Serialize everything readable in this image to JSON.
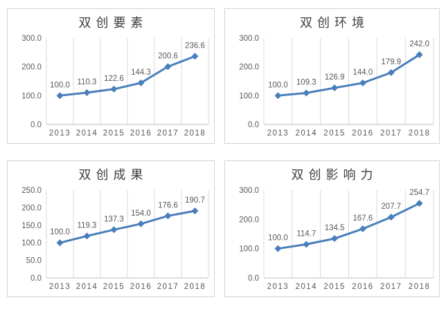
{
  "figure": {
    "kind": "2x2-line-chart-grid",
    "background": "#ffffff"
  },
  "colors": {
    "accent": "#4a7ebb",
    "gridline": "#d9d9d9",
    "axis_line": "#bfbfbf",
    "tick_text": "#595959",
    "data_label_text": "#595959",
    "title_text": "#404040",
    "panel_border": "#d2d2d2"
  },
  "chart_data": [
    {
      "type": "line",
      "title": "双创要素",
      "categories": [
        "2013",
        "2014",
        "2015",
        "2016",
        "2017",
        "2018"
      ],
      "values": [
        100.0,
        110.3,
        122.6,
        144.3,
        200.6,
        236.6
      ],
      "data_labels": [
        "100.0",
        "110.3",
        "122.6",
        "144.3",
        "200.6",
        "236.6"
      ],
      "yticks": [
        0.0,
        100.0,
        200.0,
        300.0
      ],
      "ytick_labels": [
        "0.0",
        "100.0",
        "200.0",
        "300.0"
      ],
      "ylim": [
        0,
        300
      ],
      "xlabel": "",
      "ylabel": "",
      "grid": "vertical-only",
      "legend": "none",
      "marker": "diamond"
    },
    {
      "type": "line",
      "title": "双创环境",
      "categories": [
        "2013",
        "2014",
        "2015",
        "2016",
        "2017",
        "2018"
      ],
      "values": [
        100.0,
        109.3,
        126.9,
        144.0,
        179.9,
        242.0
      ],
      "data_labels": [
        "100.0",
        "109.3",
        "126.9",
        "144.0",
        "179.9",
        "242.0"
      ],
      "yticks": [
        0.0,
        100.0,
        200.0,
        300.0
      ],
      "ytick_labels": [
        "0.0",
        "100.0",
        "200.0",
        "300.0"
      ],
      "ylim": [
        0,
        300
      ],
      "xlabel": "",
      "ylabel": "",
      "grid": "vertical-only",
      "legend": "none",
      "marker": "diamond"
    },
    {
      "type": "line",
      "title": "双创成果",
      "categories": [
        "2013",
        "2014",
        "2015",
        "2016",
        "2017",
        "2018"
      ],
      "values": [
        100.0,
        119.3,
        137.3,
        154.0,
        176.6,
        190.7
      ],
      "data_labels": [
        "100.0",
        "119.3",
        "137.3",
        "154.0",
        "176.6",
        "190.7"
      ],
      "yticks": [
        0.0,
        50.0,
        100.0,
        150.0,
        200.0,
        250.0
      ],
      "ytick_labels": [
        "0.0",
        "50.0",
        "100.0",
        "150.0",
        "200.0",
        "250.0"
      ],
      "ylim": [
        0,
        250
      ],
      "xlabel": "",
      "ylabel": "",
      "grid": "vertical-only",
      "legend": "none",
      "marker": "diamond"
    },
    {
      "type": "line",
      "title": "双创影响力",
      "categories": [
        "2013",
        "2014",
        "2015",
        "2016",
        "2017",
        "2018"
      ],
      "values": [
        100.0,
        114.7,
        134.5,
        167.6,
        207.7,
        254.7
      ],
      "data_labels": [
        "100.0",
        "114.7",
        "134.5",
        "167.6",
        "207.7",
        "254.7"
      ],
      "yticks": [
        0.0,
        100.0,
        200.0,
        300.0
      ],
      "ytick_labels": [
        "0.0",
        "100.0",
        "200.0",
        "300.0"
      ],
      "ylim": [
        0,
        300
      ],
      "xlabel": "",
      "ylabel": "",
      "grid": "vertical-only",
      "legend": "none",
      "marker": "diamond"
    }
  ]
}
